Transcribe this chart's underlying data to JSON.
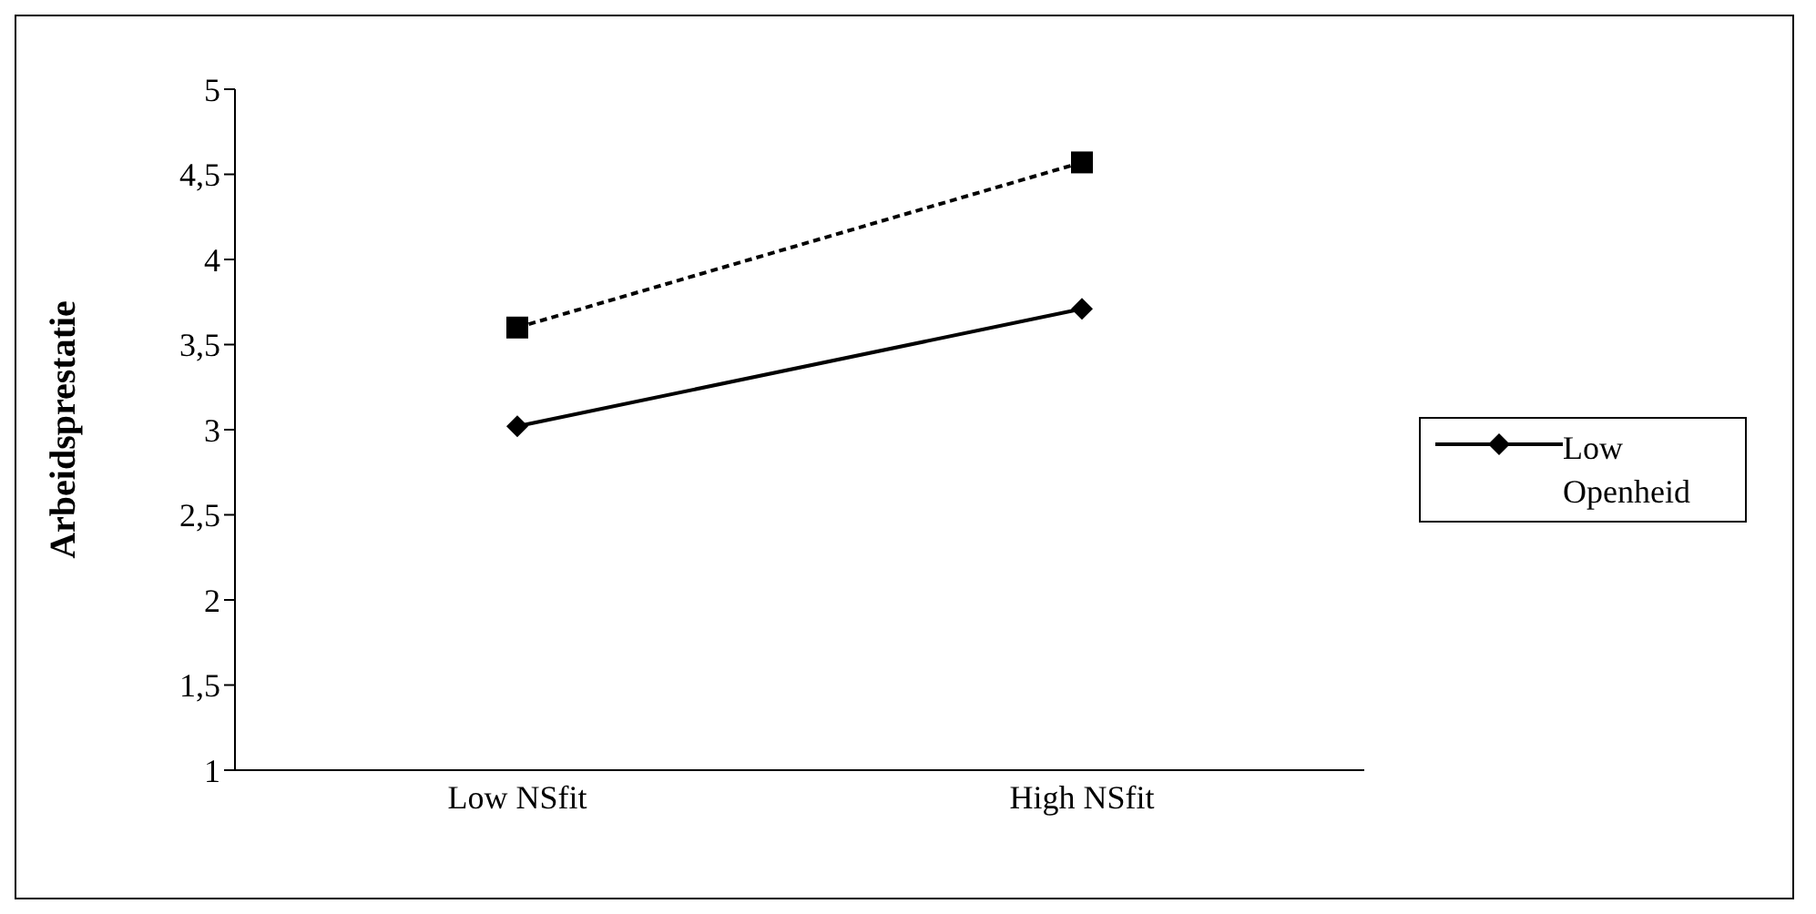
{
  "chart_data": {
    "type": "line",
    "categories": [
      "Low NSfit",
      "High NSfit"
    ],
    "ylabel": "Arbeidsprestatie",
    "ylim": [
      1,
      5
    ],
    "yticks": [
      1,
      {
        "value": 1.5,
        "label": "1,5"
      },
      2,
      {
        "value": 2.5,
        "label": "2,5"
      },
      3,
      {
        "value": 3.5,
        "label": "3,5"
      },
      4,
      {
        "value": 4.5,
        "label": "4,5"
      },
      5
    ],
    "grid": false,
    "legend": "right",
    "series": [
      {
        "name": "Low Openheid",
        "color": "#000000",
        "values": [
          3.02,
          3.71
        ],
        "marker": "diamond",
        "line_style": "solid"
      },
      {
        "color": "#000000",
        "values": [
          3.6,
          4.57
        ],
        "marker": "square",
        "line_style": "dashed"
      }
    ]
  }
}
